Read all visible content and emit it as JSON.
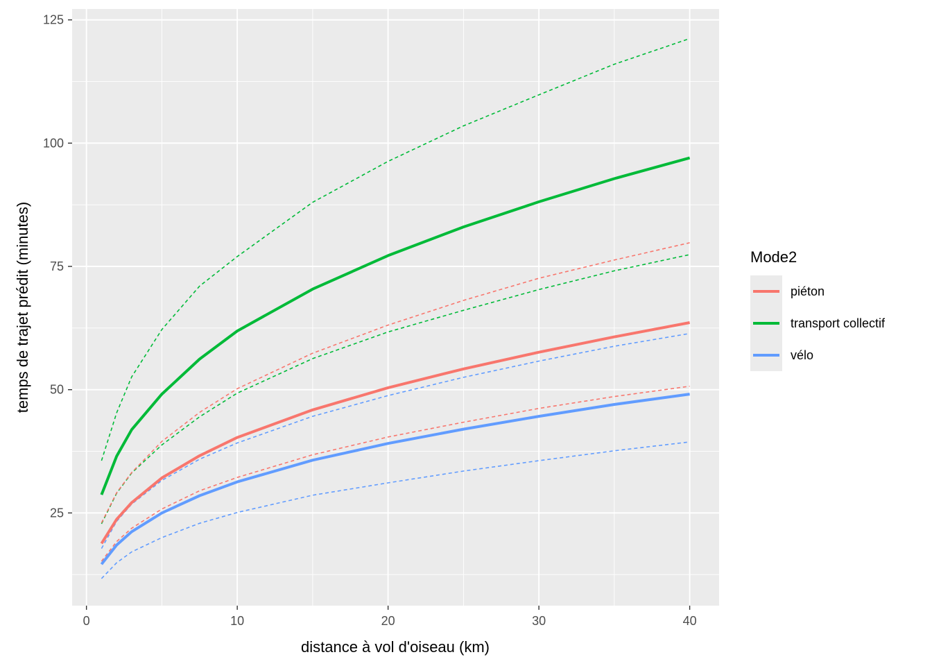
{
  "chart_data": {
    "type": "line",
    "xlabel": "distance à vol d'oiseau (km)",
    "ylabel": "temps de trajet prédit (minutes)",
    "xlim": [
      -0.95,
      41.95
    ],
    "ylim": [
      6.2,
      127.2
    ],
    "x_ticks": [
      0,
      10,
      20,
      30,
      40
    ],
    "x_tick_labels": [
      "0",
      "10",
      "20",
      "30",
      "40"
    ],
    "y_ticks": [
      25,
      50,
      75,
      100,
      125
    ],
    "y_tick_labels": [
      "25",
      "50",
      "75",
      "100",
      "125"
    ],
    "grid": true,
    "legend": {
      "title": "Mode2",
      "placement": "right",
      "entries": [
        {
          "label": "piéton",
          "color": "#F8766D"
        },
        {
          "label": "transport collectif",
          "color": "#00BA38"
        },
        {
          "label": "vélo",
          "color": "#619CFF"
        }
      ]
    },
    "x": [
      1,
      2,
      3,
      5,
      7.5,
      10,
      15,
      20,
      25,
      30,
      35,
      40
    ],
    "series": [
      {
        "mode": "piéton",
        "kind": "fit",
        "color": "#F8766D",
        "values": [
          18.8,
          23.7,
          27.1,
          32.1,
          36.6,
          40.3,
          45.9,
          50.4,
          54.2,
          57.6,
          60.7,
          63.6
        ]
      },
      {
        "mode": "piéton",
        "kind": "upper",
        "color": "#F8766D",
        "values": [
          23.0,
          29.1,
          33.2,
          39.5,
          45.4,
          50.2,
          57.4,
          63.1,
          68.1,
          72.6,
          76.3,
          79.8
        ]
      },
      {
        "mode": "piéton",
        "kind": "lower",
        "color": "#F8766D",
        "values": [
          15.2,
          19.2,
          21.9,
          25.8,
          29.5,
          32.2,
          36.8,
          40.4,
          43.4,
          46.2,
          48.6,
          50.7
        ]
      },
      {
        "mode": "transport collectif",
        "kind": "fit",
        "color": "#00BA38",
        "values": [
          28.7,
          36.5,
          41.9,
          49.1,
          56.2,
          61.9,
          70.4,
          77.2,
          83.0,
          88.1,
          92.8,
          97.0
        ]
      },
      {
        "mode": "transport collectif",
        "kind": "upper",
        "color": "#00BA38",
        "values": [
          35.6,
          45.3,
          52.6,
          62.2,
          71.0,
          77.0,
          88.0,
          96.3,
          103.5,
          109.8,
          116.0,
          121.2
        ]
      },
      {
        "mode": "transport collectif",
        "kind": "lower",
        "color": "#00BA38",
        "values": [
          22.8,
          29.0,
          33.1,
          38.8,
          44.5,
          49.3,
          56.3,
          61.7,
          66.1,
          70.3,
          74.1,
          77.4
        ]
      },
      {
        "mode": "vélo",
        "kind": "fit",
        "color": "#619CFF",
        "values": [
          14.6,
          18.5,
          21.2,
          25.0,
          28.5,
          31.3,
          35.7,
          39.1,
          42.0,
          44.6,
          47.0,
          49.1
        ]
      },
      {
        "mode": "vélo",
        "kind": "upper",
        "color": "#619CFF",
        "values": [
          17.8,
          23.3,
          26.8,
          31.6,
          35.9,
          39.2,
          44.6,
          48.8,
          52.5,
          55.8,
          58.8,
          61.4
        ]
      },
      {
        "mode": "vélo",
        "kind": "lower",
        "color": "#619CFF",
        "values": [
          11.7,
          14.9,
          17.1,
          20.0,
          22.9,
          25.1,
          28.6,
          31.1,
          33.5,
          35.6,
          37.6,
          39.4
        ]
      }
    ]
  }
}
